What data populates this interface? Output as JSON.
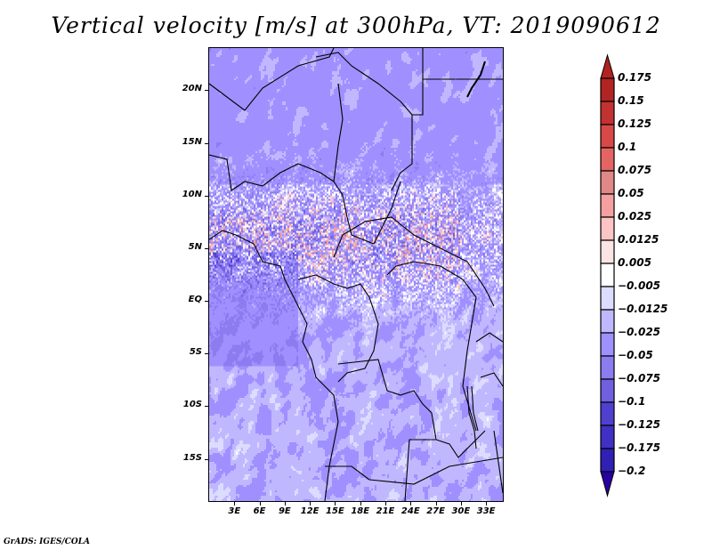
{
  "title": "Vertical velocity [m/s] at 300hPa, VT: 2019090612",
  "credit": "GrADS: IGES/COLA",
  "map": {
    "projection": "latlon",
    "lon_range": [
      0,
      35
    ],
    "lat_range": [
      -19,
      24
    ],
    "variable": "Vertical velocity",
    "units": "m/s",
    "level": "300hPa",
    "valid_time": "2019090612"
  },
  "axes": {
    "y_ticks": [
      {
        "label": "20N",
        "value": 20
      },
      {
        "label": "15N",
        "value": 15
      },
      {
        "label": "10N",
        "value": 10
      },
      {
        "label": "5N",
        "value": 5
      },
      {
        "label": "EQ",
        "value": 0
      },
      {
        "label": "5S",
        "value": -5
      },
      {
        "label": "10S",
        "value": -10
      },
      {
        "label": "15S",
        "value": -15
      }
    ],
    "x_ticks": [
      {
        "label": "3E",
        "value": 3
      },
      {
        "label": "6E",
        "value": 6
      },
      {
        "label": "9E",
        "value": 9
      },
      {
        "label": "12E",
        "value": 12
      },
      {
        "label": "15E",
        "value": 15
      },
      {
        "label": "18E",
        "value": 18
      },
      {
        "label": "21E",
        "value": 21
      },
      {
        "label": "24E",
        "value": 24
      },
      {
        "label": "27E",
        "value": 27
      },
      {
        "label": "30E",
        "value": 30
      },
      {
        "label": "33E",
        "value": 33
      }
    ]
  },
  "colorbar": {
    "labels": [
      "0.175",
      "0.15",
      "0.125",
      "0.1",
      "0.075",
      "0.05",
      "0.025",
      "0.0125",
      "0.005",
      "−0.005",
      "−0.0125",
      "−0.025",
      "−0.05",
      "−0.075",
      "−0.1",
      "−0.125",
      "−0.175",
      "−0.2"
    ],
    "levels": [
      0.175,
      0.15,
      0.125,
      0.1,
      0.075,
      0.05,
      0.025,
      0.0125,
      0.005,
      -0.005,
      -0.0125,
      -0.025,
      -0.05,
      -0.075,
      -0.1,
      -0.125,
      -0.175,
      -0.2
    ],
    "top_arrow_color": "#b22222",
    "bottom_arrow_color": "#2800a0",
    "colors": [
      "#b22424",
      "#c23232",
      "#d94848",
      "#e46464",
      "#e08888",
      "#f4a0a0",
      "#fcc4c4",
      "#fde4e4",
      "#ffffff",
      "#dcdcff",
      "#c0b8ff",
      "#a090ff",
      "#8c7cf0",
      "#7060e0",
      "#5040d0",
      "#4030c4",
      "#3020b4"
    ]
  }
}
